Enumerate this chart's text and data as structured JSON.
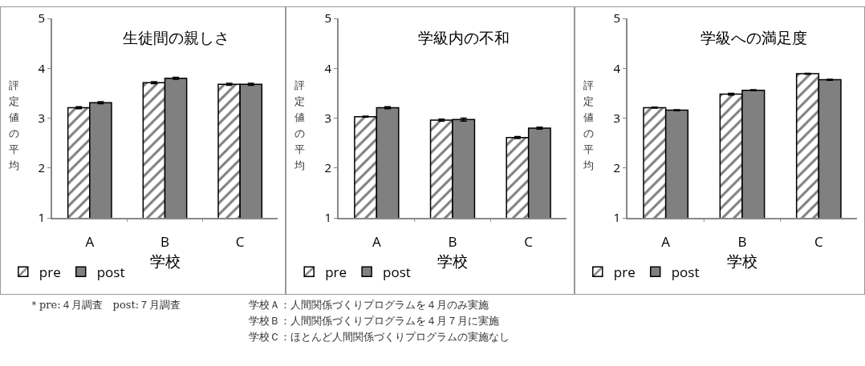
{
  "chart_data": [
    {
      "type": "bar",
      "title": "生徒間の親しさ",
      "xlabel": "学校",
      "ylabel": "評定値の平均",
      "categories": [
        "A",
        "B",
        "C"
      ],
      "ylim": [
        1,
        5
      ],
      "yticks": [
        1,
        2,
        3,
        4,
        5
      ],
      "legend": "bottom left",
      "annotations": [
        "＊pre:４月調査　post:７月調査",
        "学校Ａ：人間関係づくりプログラムを４月のみ実施",
        "学校Ｂ：人間関係づくりプログラムを４月７月に実施",
        "学校Ｃ：ほとんど人間関係づくりプログラムの実施なし"
      ],
      "series": [
        {
          "name": "pre",
          "color": "#000000",
          "values": [
            3.21,
            3.71,
            3.68
          ],
          "errors": [
            0.02,
            0.02,
            0.02
          ]
        },
        {
          "name": "post",
          "color": "#808080",
          "values": [
            3.31,
            3.8,
            3.68
          ],
          "errors": [
            0.02,
            0.02,
            0.02
          ]
        }
      ]
    },
    {
      "type": "bar",
      "title": "学級内の不和",
      "xlabel": "学校",
      "ylabel": "評定値の平均",
      "categories": [
        "A",
        "B",
        "C"
      ],
      "ylim": [
        1,
        5
      ],
      "yticks": [
        1,
        2,
        3,
        4,
        5
      ],
      "legend": "bottom left",
      "series": [
        {
          "name": "pre",
          "color": "#000000",
          "values": [
            3.03,
            2.96,
            2.61
          ],
          "errors": [
            0.01,
            0.02,
            0.02
          ]
        },
        {
          "name": "post",
          "color": "#808080",
          "values": [
            3.21,
            2.97,
            2.8
          ],
          "errors": [
            0.02,
            0.03,
            0.02
          ]
        }
      ]
    },
    {
      "type": "bar",
      "title": "学級への満足度",
      "xlabel": "学校",
      "ylabel": "評定値の平均",
      "categories": [
        "A",
        "B",
        "C"
      ],
      "ylim": [
        1,
        5
      ],
      "yticks": [
        1,
        2,
        3,
        4,
        5
      ],
      "legend": "bottom left",
      "series": [
        {
          "name": "pre",
          "color": "#000000",
          "values": [
            3.21,
            3.48,
            3.89
          ],
          "errors": [
            0.01,
            0.02,
            0.01
          ]
        },
        {
          "name": "post",
          "color": "#808080",
          "values": [
            3.16,
            3.56,
            3.77
          ],
          "errors": [
            0.01,
            0.01,
            0.01
          ]
        }
      ]
    }
  ]
}
